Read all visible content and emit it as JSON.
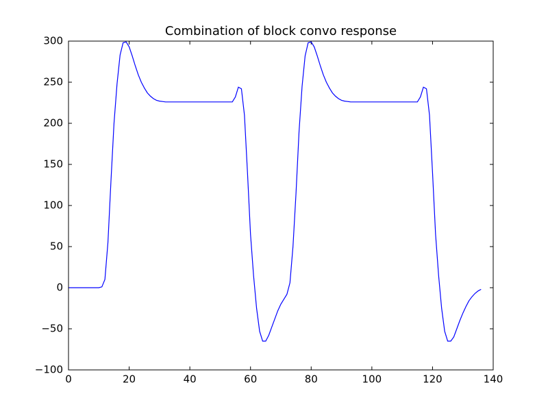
{
  "chart_data": {
    "type": "line",
    "title": "Combination of block convo response",
    "x": [
      0,
      1,
      2,
      3,
      4,
      5,
      6,
      7,
      8,
      9,
      10,
      11,
      12,
      13,
      14,
      15,
      16,
      17,
      18,
      19,
      20,
      21,
      22,
      23,
      24,
      25,
      26,
      27,
      28,
      29,
      30,
      31,
      32,
      33,
      34,
      35,
      36,
      37,
      38,
      39,
      40,
      41,
      42,
      43,
      44,
      45,
      46,
      47,
      48,
      49,
      50,
      51,
      52,
      53,
      54,
      55,
      56,
      57,
      58,
      59,
      60,
      61,
      62,
      63,
      64,
      65,
      66,
      67,
      68,
      69,
      70,
      71,
      72,
      73,
      74,
      75,
      76,
      77,
      78,
      79,
      80,
      81,
      82,
      83,
      84,
      85,
      86,
      87,
      88,
      89,
      90,
      91,
      92,
      93,
      94,
      95,
      96,
      97,
      98,
      99,
      100,
      101,
      102,
      103,
      104,
      105,
      106,
      107,
      108,
      109,
      110,
      111,
      112,
      113,
      114,
      115,
      116,
      117,
      118,
      119,
      120,
      121,
      122,
      123,
      124,
      125,
      126,
      127,
      128,
      129,
      130,
      131,
      132,
      133,
      134,
      135,
      136
    ],
    "series": [
      {
        "color": "#0000ff",
        "values": [
          0,
          0,
          0,
          0,
          0,
          0,
          0,
          0,
          0,
          0,
          0,
          1,
          10,
          55,
          130,
          200,
          248,
          283,
          298,
          299,
          293,
          282,
          270,
          259,
          250,
          243,
          237,
          233,
          230,
          228,
          227,
          226.5,
          226,
          226,
          226,
          226,
          226,
          226,
          226,
          226,
          226,
          226,
          226,
          226,
          226,
          226,
          226,
          226,
          226,
          226,
          226,
          226,
          226,
          226,
          226,
          232,
          244,
          242,
          210,
          140,
          65,
          15,
          -25,
          -53,
          -65,
          -65,
          -58,
          -48,
          -38,
          -28,
          -20,
          -14,
          -8,
          6,
          50,
          115,
          190,
          245,
          282,
          298,
          299,
          293,
          282,
          270,
          259,
          250,
          243,
          237,
          233,
          230,
          228,
          227,
          226.5,
          226,
          226,
          226,
          226,
          226,
          226,
          226,
          226,
          226,
          226,
          226,
          226,
          226,
          226,
          226,
          226,
          226,
          226,
          226,
          226,
          226,
          226,
          226,
          232,
          244,
          242,
          210,
          140,
          65,
          15,
          -25,
          -53,
          -65,
          -65,
          -60,
          -50,
          -40,
          -31,
          -23,
          -16,
          -11,
          -7,
          -4,
          -2
        ]
      }
    ],
    "xlim": [
      0,
      140
    ],
    "xticks": [
      0,
      20,
      40,
      60,
      80,
      100,
      120,
      140
    ],
    "ylim": [
      -100,
      300
    ],
    "yticks": [
      {
        "value": -100,
        "label": "−100"
      },
      {
        "value": -50,
        "label": "−50"
      },
      0,
      50,
      100,
      150,
      200,
      250,
      300
    ]
  }
}
